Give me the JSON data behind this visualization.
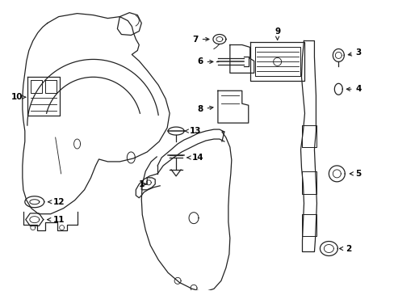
{
  "background_color": "#ffffff",
  "line_color": "#222222",
  "label_color": "#000000",
  "lw": 0.9,
  "figsize": [
    4.89,
    3.6
  ],
  "dpi": 100
}
